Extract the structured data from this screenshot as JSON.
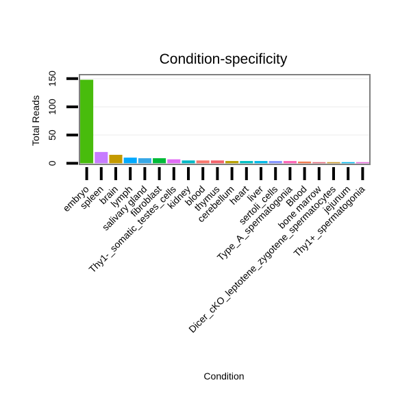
{
  "chart_data": {
    "type": "bar",
    "title": "Condition-specificity",
    "xlabel": "Condition",
    "ylabel": "Total Reads",
    "ylim": [
      -2,
      157
    ],
    "yticks": [
      0,
      50,
      100,
      150
    ],
    "grid": true,
    "legend": "none",
    "categories": [
      "embryo",
      "spleen",
      "brain",
      "lymph",
      "salivary gland",
      "fibroblast",
      "Thy1-_somatic_testes_cells",
      "kidney",
      "blood",
      "thymus",
      "cerebellum",
      "heart",
      "liver",
      "sertoli_cells",
      "Type_A_spermatogonia",
      "Blood",
      "bone marrow",
      "Dicer_cKO_leptotene_zygotene_spermatocytes",
      "jejunum",
      "Thy1+_spermatogonia"
    ],
    "values": [
      148,
      20,
      15,
      10,
      9,
      9,
      7,
      5,
      5,
      5,
      4,
      4,
      4,
      4,
      4,
      3,
      2,
      2,
      2,
      2
    ],
    "colors": [
      "#48bc0c",
      "#c77cff",
      "#c49a00",
      "#00a9ff",
      "#39a8e6",
      "#00ba38",
      "#e06cf4",
      "#00b8c4",
      "#f8766d",
      "#f3636b",
      "#b79f00",
      "#00bfc4",
      "#00b8e7",
      "#8494ff",
      "#ff63b6",
      "#f07a4e",
      "#e26a7a",
      "#c99a2e",
      "#00b6eb",
      "#e56adb"
    ]
  }
}
